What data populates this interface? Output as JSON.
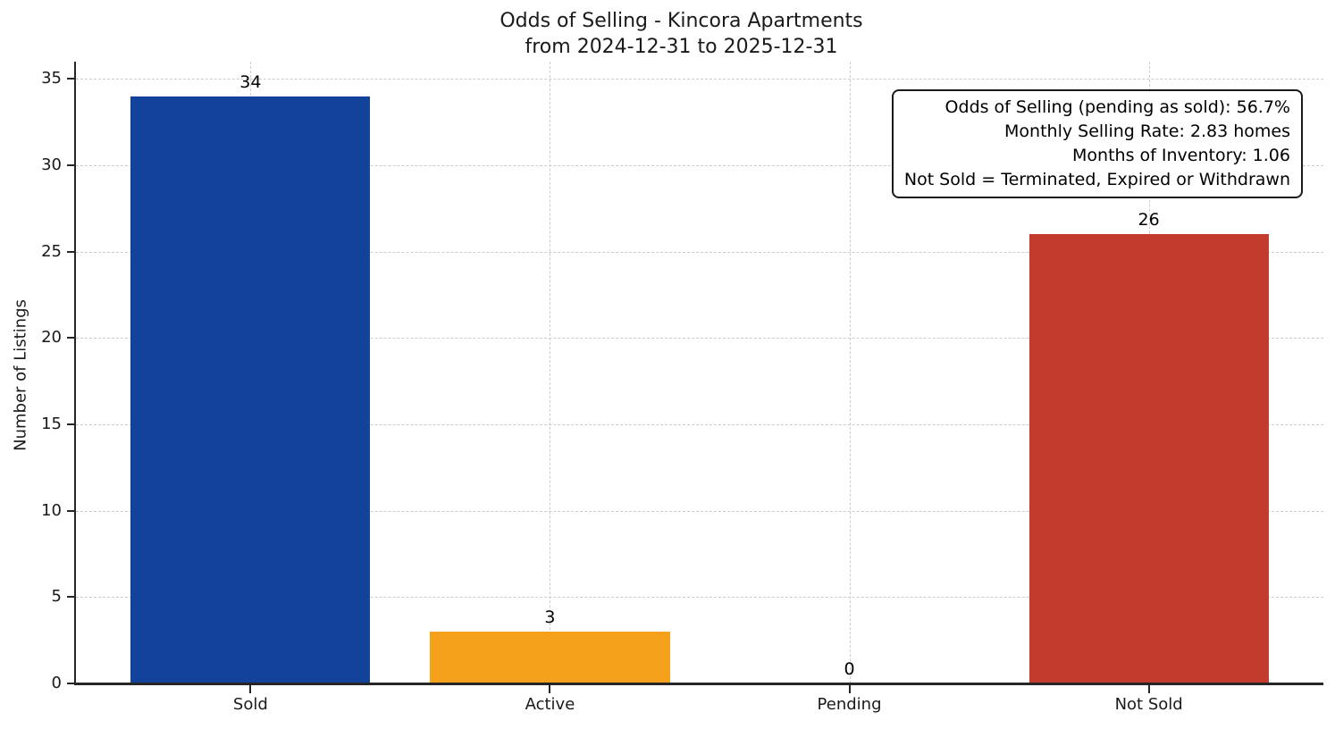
{
  "title": {
    "line1": "Odds of Selling - Kincora Apartments",
    "line2": "from 2024-12-31 to 2025-12-31"
  },
  "y_axis": {
    "label": "Number of Listings"
  },
  "annotation": {
    "lines": [
      "Odds of Selling (pending as sold): 56.7%",
      "Monthly Selling Rate: 2.83 homes",
      "Months of Inventory: 1.06",
      "Not Sold = Terminated, Expired or Withdrawn"
    ]
  },
  "chart_data": {
    "type": "bar",
    "title": "Odds of Selling - Kincora Apartments\nfrom 2024-12-31 to 2025-12-31",
    "categories": [
      "Sold",
      "Active",
      "Pending",
      "Not Sold"
    ],
    "values": [
      34,
      3,
      0,
      26
    ],
    "bar_colors": [
      "#12429a",
      "#f5a11b",
      null,
      "#c33b2c"
    ],
    "value_label_color": "#000000",
    "xlabel": "",
    "ylabel": "Number of Listings",
    "ylim": [
      0,
      36
    ],
    "yticks": [
      0,
      5,
      10,
      15,
      20,
      25,
      30,
      35
    ],
    "xlim": [
      -0.583,
      3.583
    ],
    "bar_width": 0.8,
    "grid": true,
    "grid_line_style": "dashed",
    "grid_color": "#cccccc",
    "legend_position": "none",
    "annotation_lines": [
      "Odds of Selling (pending as sold): 56.7%",
      "Monthly Selling Rate: 2.83 homes",
      "Months of Inventory: 1.06",
      "Not Sold = Terminated, Expired or Withdrawn"
    ],
    "annotation_position": "top-right"
  }
}
